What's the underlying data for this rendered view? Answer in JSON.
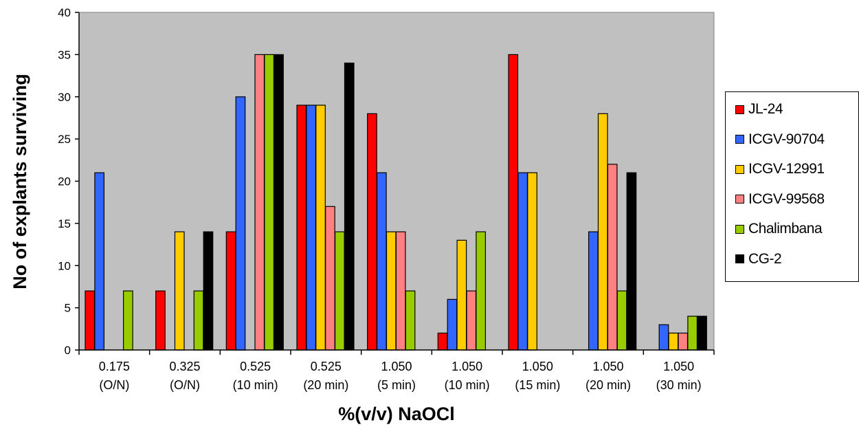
{
  "chart_data": {
    "type": "bar",
    "title": "",
    "xlabel": "%(v/v) NaOCl",
    "ylabel": "No of explants surviving",
    "ylim": [
      0,
      40
    ],
    "yticks": [
      0,
      5,
      10,
      15,
      20,
      25,
      30,
      35,
      40
    ],
    "grid": false,
    "legend_position": "right",
    "plot_background": "#c0c0c0",
    "categories": [
      [
        "0.175",
        "(O/N)"
      ],
      [
        "0.325",
        "(O/N)"
      ],
      [
        "0.525",
        "(10 min)"
      ],
      [
        "0.525",
        "(20 min)"
      ],
      [
        "1.050",
        "(5 min)"
      ],
      [
        "1.050",
        "(10 min)"
      ],
      [
        "1.050",
        "(15 min)"
      ],
      [
        "1.050",
        "(20 min)"
      ],
      [
        "1.050",
        "(30 min)"
      ]
    ],
    "series": [
      {
        "name": "JL-24",
        "color": "#ff0000",
        "values": [
          7,
          7,
          14,
          29,
          28,
          2,
          35,
          0,
          0
        ]
      },
      {
        "name": "ICGV-90704",
        "color": "#3366ff",
        "values": [
          21,
          0,
          30,
          29,
          21,
          6,
          21,
          14,
          3
        ]
      },
      {
        "name": "ICGV-12991",
        "color": "#ffcc00",
        "values": [
          0,
          14,
          0,
          29,
          14,
          13,
          21,
          28,
          2
        ]
      },
      {
        "name": "ICGV-99568",
        "color": "#ff8080",
        "values": [
          0,
          0,
          35,
          17,
          14,
          7,
          0,
          22,
          2
        ]
      },
      {
        "name": "Chalimbana",
        "color": "#99cc00",
        "values": [
          7,
          7,
          35,
          14,
          7,
          14,
          0,
          7,
          4
        ]
      },
      {
        "name": "CG-2",
        "color": "#000000",
        "values": [
          0,
          14,
          35,
          34,
          0,
          0,
          0,
          21,
          4
        ]
      }
    ]
  }
}
